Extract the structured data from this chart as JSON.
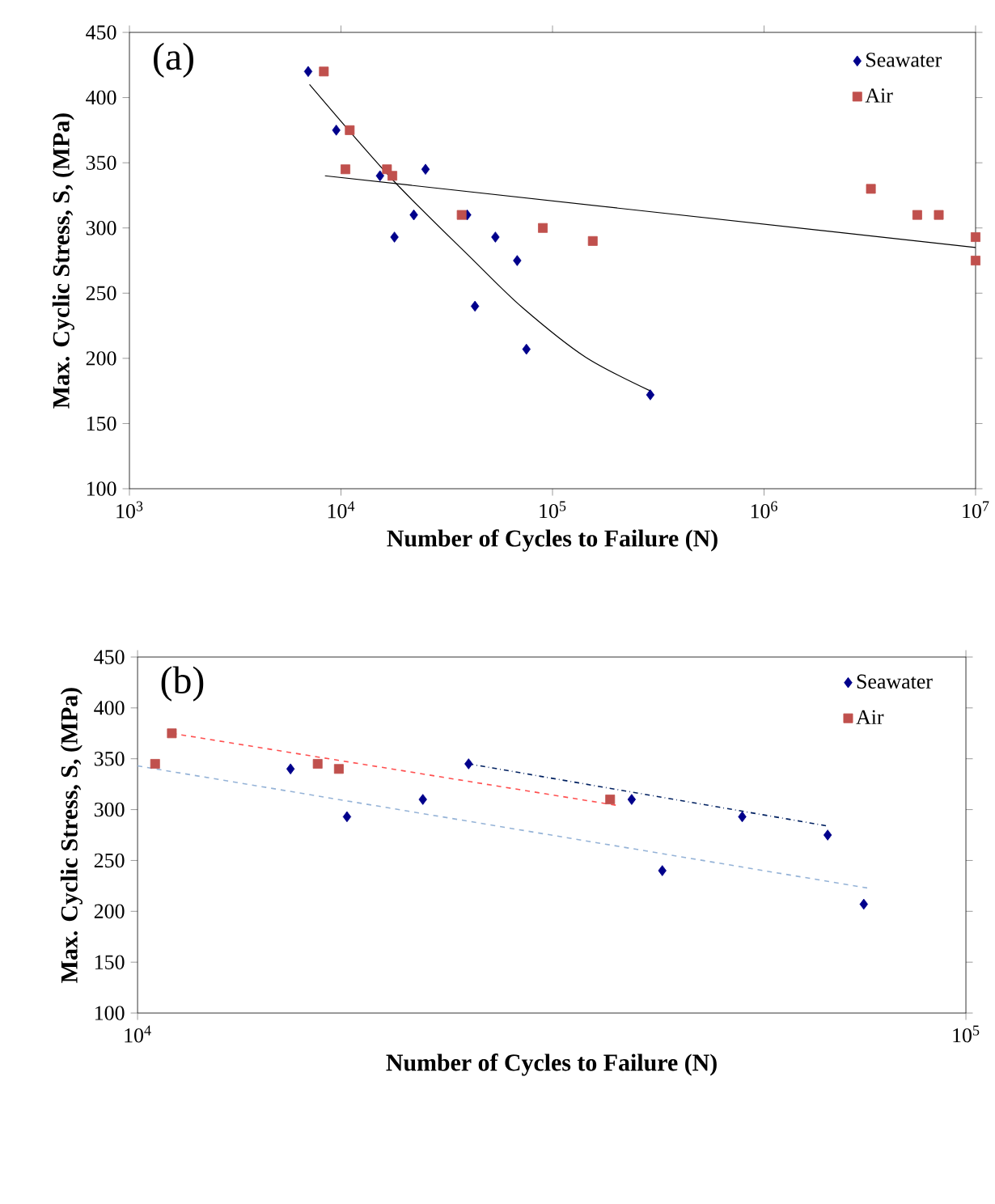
{
  "chart_data": [
    {
      "type": "scatter",
      "annotations": [
        "(a)"
      ],
      "xlabel": "Number of Cycles to Failure (N)",
      "ylabel": "Max. Cyclic Stress, S, (MPa)",
      "log": "x",
      "legend": "top right",
      "grid": false,
      "xlim": [
        1000,
        10000000
      ],
      "ylim": [
        100,
        450
      ],
      "xticks": [
        {
          "value": 1000,
          "label": "10$^{3}$"
        },
        {
          "value": 10000,
          "label": "10$^{4}$"
        },
        {
          "value": 100000,
          "label": "10$^{5}$"
        },
        {
          "value": 1000000,
          "label": "10$^{6}$"
        },
        {
          "value": 10000000,
          "label": "10$^{7}$"
        }
      ],
      "yticks": [
        100,
        150,
        200,
        250,
        300,
        350,
        400,
        450
      ],
      "series": [
        {
          "name": "Seawater",
          "marker": "diamond",
          "color": "#00008b",
          "x": [
            7000,
            9500,
            15300,
            17900,
            22100,
            25100,
            39500,
            43000,
            53700,
            68100,
            75300,
            290000
          ],
          "values": [
            420,
            375,
            340,
            293,
            310,
            345,
            310,
            240,
            293,
            275,
            207,
            172
          ]
        },
        {
          "name": "Air",
          "marker": "square",
          "color": "#c0504d",
          "x": [
            8300,
            10500,
            11000,
            16500,
            17500,
            37200,
            90000,
            155000,
            3200000,
            5300000,
            6700000,
            10000000,
            10000000
          ],
          "values": [
            420,
            345,
            375,
            345,
            340,
            310,
            300,
            290,
            330,
            310,
            310,
            293,
            275
          ]
        },
        {
          "type": "line",
          "marker": "none",
          "line_style": "solid",
          "color": "#000000",
          "x": [
            7100,
            17300,
            43000,
            72000,
            143000,
            290000
          ],
          "values": [
            410,
            338,
            274,
            239,
            201,
            175
          ]
        },
        {
          "type": "line",
          "marker": "none",
          "line_style": "solid",
          "color": "#000000",
          "x": [
            8400,
            10000000
          ],
          "values": [
            340,
            285
          ]
        }
      ]
    },
    {
      "type": "scatter",
      "annotations": [
        "(b)"
      ],
      "xlabel": "Number of Cycles to Failure (N)",
      "ylabel": "Max. Cyclic Stress, S, (MPa)",
      "log": "x",
      "legend": "top right",
      "grid": false,
      "xlim": [
        10000,
        100000
      ],
      "ylim": [
        100,
        450
      ],
      "xticks": [
        {
          "value": 10000,
          "label": "10$^{4}$"
        },
        {
          "value": 100000,
          "label": "10$^{5}$"
        }
      ],
      "yticks": [
        100,
        150,
        200,
        250,
        300,
        350,
        400,
        450
      ],
      "series": [
        {
          "name": "Seawater",
          "marker": "diamond",
          "color": "#00008b",
          "x": [
            15300,
            17900,
            22100,
            25100,
            39500,
            43000,
            53700,
            68100,
            75300
          ],
          "values": [
            340,
            293,
            310,
            345,
            310,
            240,
            293,
            275,
            207
          ]
        },
        {
          "name": "Air",
          "marker": "square",
          "color": "#c0504d",
          "x": [
            10500,
            11000,
            16500,
            17500,
            37200
          ],
          "values": [
            345,
            375,
            345,
            340,
            310
          ]
        },
        {
          "type": "line",
          "marker": "none",
          "line_style": "dashed",
          "color": "#ff5050",
          "x": [
            11000,
            38000
          ],
          "values": [
            375,
            304
          ]
        },
        {
          "type": "line",
          "marker": "none",
          "line_style": "dashdot",
          "color": "#002060",
          "x": [
            25100,
            68000
          ],
          "values": [
            345,
            284
          ]
        },
        {
          "type": "line",
          "marker": "none",
          "line_style": "dashed",
          "color": "#95b3d7",
          "x": [
            10000,
            76000
          ],
          "values": [
            343,
            223
          ]
        }
      ]
    }
  ]
}
